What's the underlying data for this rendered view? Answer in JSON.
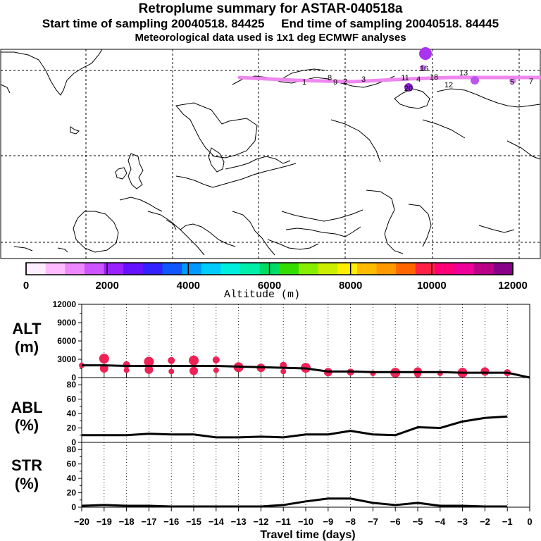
{
  "header": {
    "title": "Retroplume summary for ASTAR-040518a",
    "subtitle": "Start time of sampling 20040518. 84425     End time of sampling 20040518. 84445",
    "met_note": "Meteorological data used is 1x1 deg ECMWF analyses"
  },
  "map": {
    "plume_color": "#ee88ee",
    "cluster_labels": [
      {
        "label": "19",
        "color": "#aa33ee"
      },
      {
        "label": "16",
        "color": "#000000"
      },
      {
        "label": "18",
        "color": "#000000"
      },
      {
        "label": "13",
        "color": "#000000"
      },
      {
        "label": "12",
        "color": "#000000"
      },
      {
        "label": "11",
        "color": "#000000"
      },
      {
        "label": "2",
        "color": "#000000"
      },
      {
        "label": "3",
        "color": "#000000"
      },
      {
        "label": "4",
        "color": "#000000"
      },
      {
        "label": "5",
        "color": "#000000"
      },
      {
        "label": "1",
        "color": "#000000"
      },
      {
        "label": "20",
        "color": "#000000"
      },
      {
        "label": "9",
        "color": "#000000"
      },
      {
        "label": "8",
        "color": "#000000"
      },
      {
        "label": "7",
        "color": "#000000"
      }
    ]
  },
  "colorbar": {
    "xlabel": "Altitude (m)",
    "ticks": [
      "0",
      "2000",
      "4000",
      "6000",
      "8000",
      "10000",
      "12000"
    ],
    "colors": [
      "#ffeeff",
      "#ffbbff",
      "#ee88ff",
      "#cc55ff",
      "#9922ff",
      "#6611ff",
      "#3322ff",
      "#1155ff",
      "#0099ff",
      "#00ccff",
      "#00eedd",
      "#00eeaa",
      "#00dd66",
      "#33dd00",
      "#88ee00",
      "#ccee00",
      "#ffee00",
      "#ffbb00",
      "#ff9900",
      "#ff6600",
      "#ff2244",
      "#ff0077",
      "#ee0099",
      "#bb0088",
      "#880088"
    ]
  },
  "panels": {
    "alt": {
      "label_top": "ALT",
      "label_bottom": "(m)",
      "ticks": [
        "0",
        "3000",
        "6000",
        "9000",
        "12000"
      ]
    },
    "abl": {
      "label_top": "ABL",
      "label_bottom": "(%)",
      "ticks": [
        "0",
        "20",
        "40",
        "60",
        "80"
      ]
    },
    "str": {
      "label_top": "STR",
      "label_bottom": "(%)",
      "ticks": [
        "0",
        "20",
        "40",
        "60",
        "80"
      ]
    }
  },
  "xaxis": {
    "label": "Travel time (days)",
    "ticks": [
      "-20",
      "-19",
      "-18",
      "-17",
      "-16",
      "-15",
      "-14",
      "-13",
      "-12",
      "-11",
      "-10",
      "-9",
      "-8",
      "-7",
      "-6",
      "-5",
      "-4",
      "-3",
      "-2",
      "-1",
      "0"
    ]
  },
  "chart_data": [
    {
      "type": "line",
      "title": "ALT",
      "xlabel": "Travel time (days)",
      "ylabel": "Altitude (m)",
      "ylim": [
        0,
        12000
      ],
      "x": [
        -20,
        -19,
        -18,
        -17,
        -16,
        -15,
        -14,
        -13,
        -12,
        -11,
        -10,
        -9,
        -8,
        -7,
        -6,
        -5,
        -4,
        -3,
        -2,
        -1,
        0
      ],
      "series": [
        {
          "name": "mean altitude",
          "values": [
            2000,
            2000,
            1900,
            1900,
            1900,
            1900,
            1900,
            1800,
            1700,
            1600,
            1500,
            1000,
            1000,
            900,
            900,
            900,
            900,
            800,
            800,
            800,
            0
          ]
        }
      ],
      "cluster_points": {
        "x": [
          -20,
          -19,
          -19,
          -18,
          -18,
          -17,
          -17,
          -16,
          -16,
          -15,
          -15,
          -14,
          -14,
          -13,
          -12,
          -11,
          -11,
          -10,
          -9,
          -8,
          -7,
          -6,
          -5,
          -5,
          -4,
          -3,
          -2,
          -1
        ],
        "y": [
          2000,
          3100,
          1500,
          2100,
          1200,
          2600,
          1300,
          2800,
          1000,
          2800,
          1100,
          2900,
          1200,
          1700,
          1600,
          2000,
          1000,
          1600,
          900,
          900,
          700,
          800,
          1000,
          600,
          700,
          800,
          1000,
          800
        ]
      }
    },
    {
      "type": "line",
      "title": "ABL",
      "xlabel": "Travel time (days)",
      "ylabel": "ABL (%)",
      "ylim": [
        0,
        90
      ],
      "x": [
        -20,
        -19,
        -18,
        -17,
        -16,
        -15,
        -14,
        -13,
        -12,
        -11,
        -10,
        -9,
        -8,
        -7,
        -6,
        -5,
        -4,
        -3,
        -2,
        -1
      ],
      "series": [
        {
          "name": "ABL fraction",
          "values": [
            10,
            10,
            10,
            12,
            11,
            11,
            7,
            7,
            8,
            7,
            11,
            11,
            16,
            11,
            10,
            21,
            20,
            29,
            34,
            36
          ]
        }
      ]
    },
    {
      "type": "line",
      "title": "STR",
      "xlabel": "Travel time (days)",
      "ylabel": "STR (%)",
      "ylim": [
        0,
        90
      ],
      "x": [
        -20,
        -19,
        -18,
        -17,
        -16,
        -15,
        -14,
        -13,
        -12,
        -11,
        -10,
        -9,
        -8,
        -7,
        -6,
        -5,
        -4,
        -3,
        -2,
        -1
      ],
      "series": [
        {
          "name": "stratosphere fraction",
          "values": [
            2,
            3,
            2,
            2,
            1,
            1,
            1,
            1,
            1,
            3,
            8,
            12,
            12,
            6,
            3,
            6,
            2,
            2,
            1,
            1
          ]
        }
      ]
    }
  ]
}
